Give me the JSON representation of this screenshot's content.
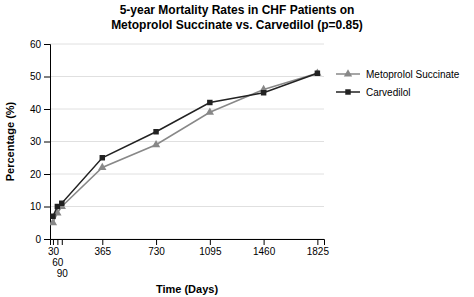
{
  "chart_data": {
    "type": "line",
    "title": "5-year Mortality Rates in CHF Patients on\nMetoprolol Succinate vs. Carvedilol (p=0.85)",
    "xlabel": "Time (Days)",
    "ylabel": "Percentage (%)",
    "x": [
      30,
      60,
      90,
      365,
      730,
      1095,
      1460,
      1825
    ],
    "series": [
      {
        "name": "Metoprolol Succinate",
        "color": "#888888",
        "marker": "triangle",
        "values": [
          5,
          8,
          10,
          22,
          29,
          39,
          46,
          51
        ]
      },
      {
        "name": "Carvedilol",
        "color": "#222222",
        "marker": "square",
        "values": [
          7,
          10,
          11,
          25,
          33,
          42,
          45,
          51
        ]
      }
    ],
    "xlim": [
      10,
      1870
    ],
    "xticks": [
      30,
      60,
      90,
      365,
      730,
      1095,
      1460,
      1825
    ],
    "ylim": [
      0,
      60
    ],
    "yticks": [
      0,
      10,
      20,
      30,
      40,
      50,
      60
    ],
    "grid": true,
    "legend": "right"
  }
}
